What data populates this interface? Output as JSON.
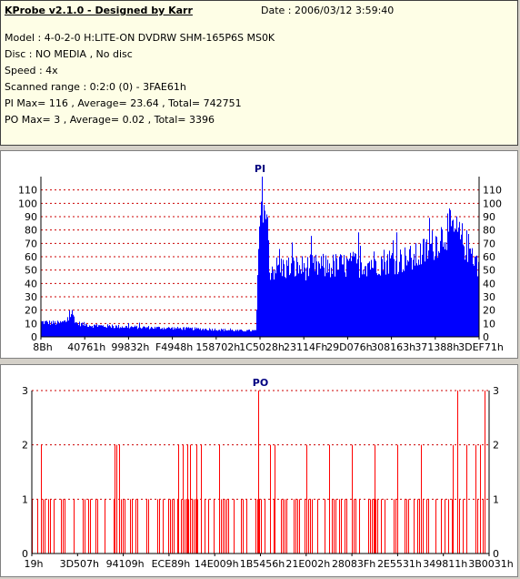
{
  "info": {
    "title": "KProbe v2.1.0 - Designed by Karr",
    "date": "Date : 2006/03/12 3:59:40",
    "lines": [
      "Model : 4-0-2-0 H:LITE-ON DVDRW SHM-165P6S MS0K",
      "Disc : NO MEDIA , No disc",
      "Speed : 4x",
      "Scanned range : 0:2:0 (0) - 3FAE61h",
      "PI Max= 116 , Average= 23.64 , Total= 742751",
      "PO Max= 3 , Average= 0.02 , Total= 3396"
    ]
  },
  "colors": {
    "info_bg": "#fefee6",
    "pi_bar": "#0000ff",
    "po_bar": "#ff0000",
    "title_text": "#000080",
    "grid": "#cc0000"
  },
  "chart_data": [
    {
      "type": "bar",
      "title": "PI",
      "ylim": [
        0,
        120
      ],
      "yticks": [
        0,
        10,
        20,
        30,
        40,
        50,
        60,
        70,
        80,
        90,
        100,
        110
      ],
      "xtick_labels": [
        "8Bh",
        "40761h",
        "99832h",
        "F4948h",
        "158702h",
        "1C5028h",
        "23114Fh",
        "29D076h",
        "308163h",
        "371388h",
        "3DEF71h"
      ],
      "grid": true,
      "profile": [
        [
          0,
          12
        ],
        [
          0.04,
          11
        ],
        [
          0.06,
          13
        ],
        [
          0.07,
          20
        ],
        [
          0.08,
          11
        ],
        [
          0.12,
          9
        ],
        [
          0.2,
          8
        ],
        [
          0.3,
          7
        ],
        [
          0.4,
          6
        ],
        [
          0.45,
          5
        ],
        [
          0.49,
          5
        ],
        [
          0.5,
          100
        ],
        [
          0.505,
          115
        ],
        [
          0.51,
          110
        ],
        [
          0.515,
          75
        ],
        [
          0.52,
          55
        ],
        [
          0.55,
          56
        ],
        [
          0.6,
          56
        ],
        [
          0.65,
          57
        ],
        [
          0.7,
          58
        ],
        [
          0.75,
          60
        ],
        [
          0.8,
          62
        ],
        [
          0.85,
          63
        ],
        [
          0.88,
          70
        ],
        [
          0.91,
          80
        ],
        [
          0.93,
          88
        ],
        [
          0.95,
          83
        ],
        [
          0.97,
          74
        ],
        [
          0.99,
          64
        ],
        [
          1.0,
          55
        ]
      ],
      "max": 116,
      "average": 23.64
    },
    {
      "type": "bar",
      "title": "PO",
      "ylim": [
        0,
        3
      ],
      "yticks": [
        0,
        1,
        2,
        3
      ],
      "xtick_labels": [
        "19h",
        "3D507h",
        "94109h",
        "ECE89h",
        "14E009h",
        "1B5456h",
        "21E002h",
        "28083Fh",
        "2E5531h",
        "349811h",
        "3B0031h"
      ],
      "grid": true,
      "spikes_3": [
        0.495,
        0.93,
        0.99
      ],
      "spikes_2": [
        0.02,
        0.18,
        0.185,
        0.19,
        0.32,
        0.33,
        0.34,
        0.345,
        0.36,
        0.37,
        0.41,
        0.52,
        0.53,
        0.6,
        0.65,
        0.7,
        0.75,
        0.8,
        0.85,
        0.92,
        0.95,
        0.97,
        0.98
      ],
      "spikes_1_density": 0.5,
      "max": 3,
      "average": 0.02
    }
  ]
}
